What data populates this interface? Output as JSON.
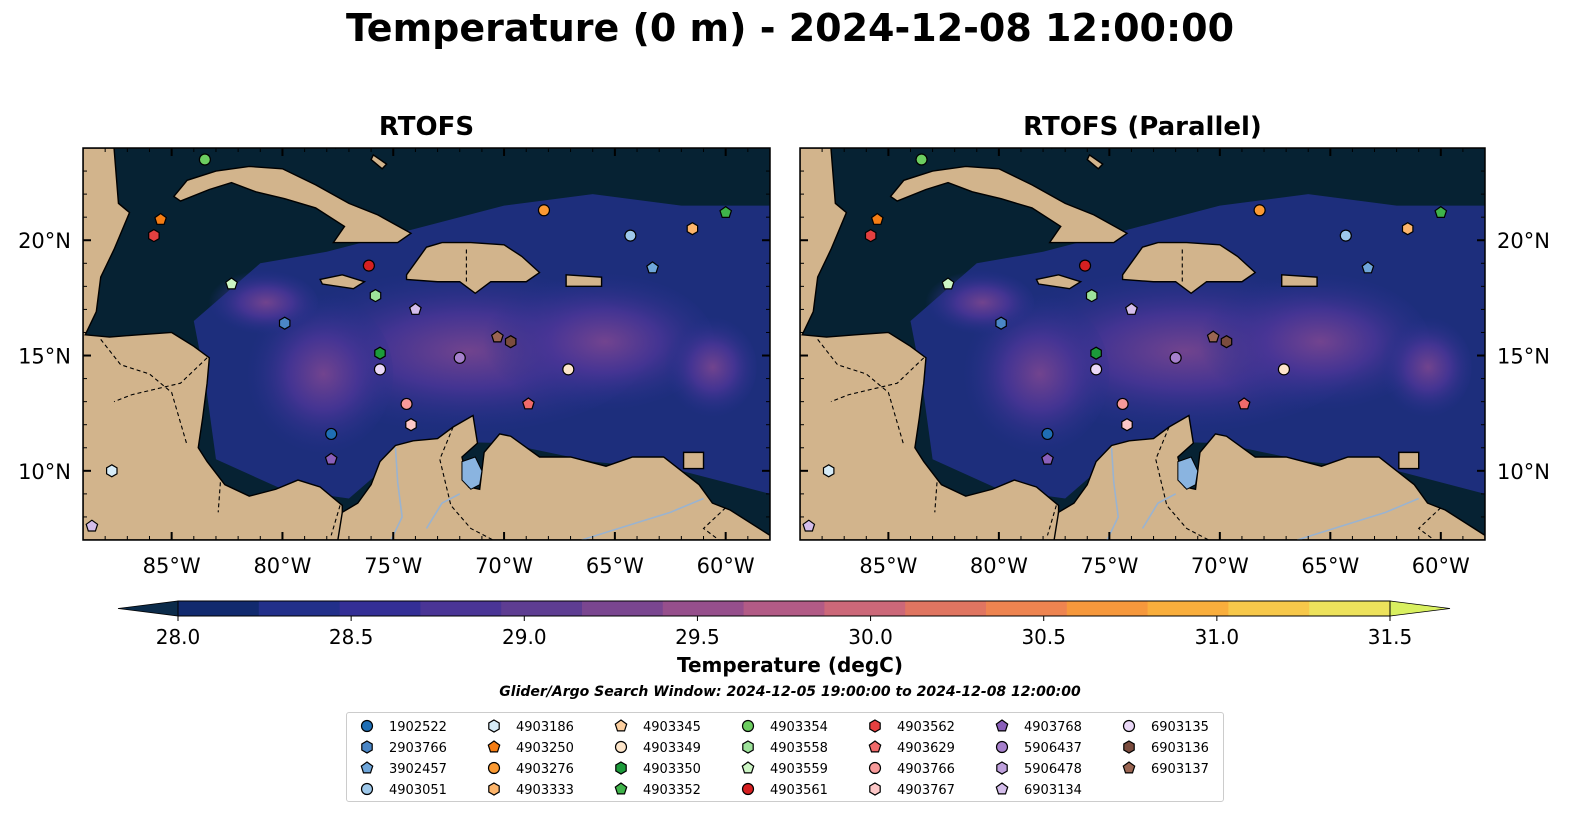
{
  "title": "Temperature (0 m) - 2024-12-08 12:00:00",
  "panels": [
    {
      "title": "RTOFS"
    },
    {
      "title": "RTOFS (Parallel)"
    }
  ],
  "map": {
    "extent": {
      "lon": [
        -89.0,
        -58.0
      ],
      "lat": [
        7.0,
        24.0
      ]
    },
    "lon_ticks": [
      -85,
      -80,
      -75,
      -70,
      -65,
      -60
    ],
    "lon_tick_labels": [
      "85°W",
      "80°W",
      "75°W",
      "70°W",
      "65°W",
      "60°W"
    ],
    "lat_ticks": [
      10,
      15,
      20
    ],
    "lat_tick_labels": [
      "10°N",
      "15°N",
      "20°N"
    ],
    "colors": {
      "ocean_deep": "#062233",
      "land": "#d2b48c",
      "lake": "#8ab4e0",
      "river": "#9ab3d0"
    }
  },
  "colorbar": {
    "label": "Temperature (degC)",
    "min": 28.0,
    "max": 31.5,
    "tick_values": [
      28.0,
      28.5,
      29.0,
      29.5,
      30.0,
      30.5,
      31.0,
      31.5
    ],
    "tick_labels": [
      "28.0",
      "28.5",
      "29.0",
      "29.5",
      "30.0",
      "30.5",
      "31.0",
      "31.5"
    ],
    "colors": [
      "#0b2b4a",
      "#112a6e",
      "#22308a",
      "#342f96",
      "#4a3596",
      "#5e3d92",
      "#7a4690",
      "#964f8c",
      "#b25b86",
      "#cc6879",
      "#e07561",
      "#ee8450",
      "#f6983c",
      "#f9ae3c",
      "#f7c84a",
      "#ede25c",
      "#d9f060"
    ]
  },
  "search_window": "Glider/Argo Search Window: 2024-12-05 19:00:00 to 2024-12-08 12:00:00",
  "legend": [
    {
      "id": "1902522",
      "marker": "circle",
      "color": "#1f6eb4"
    },
    {
      "id": "2903766",
      "marker": "hexagon",
      "color": "#4a86c6"
    },
    {
      "id": "3902457",
      "marker": "pentagon",
      "color": "#6fa6da"
    },
    {
      "id": "4903051",
      "marker": "circle",
      "color": "#9ec8ea"
    },
    {
      "id": "4903186",
      "marker": "hexagon",
      "color": "#d6ebf7"
    },
    {
      "id": "4903250",
      "marker": "pentagon",
      "color": "#f57d14"
    },
    {
      "id": "4903276",
      "marker": "circle",
      "color": "#fb9a33"
    },
    {
      "id": "4903333",
      "marker": "hexagon",
      "color": "#fdb56b"
    },
    {
      "id": "4903345",
      "marker": "pentagon",
      "color": "#fdd0a0"
    },
    {
      "id": "4903349",
      "marker": "circle",
      "color": "#fde5ca"
    },
    {
      "id": "4903350",
      "marker": "hexagon",
      "color": "#1c9a3a"
    },
    {
      "id": "4903352",
      "marker": "pentagon",
      "color": "#3fb34a"
    },
    {
      "id": "4903354",
      "marker": "circle",
      "color": "#6ccd60"
    },
    {
      "id": "4903558",
      "marker": "hexagon",
      "color": "#9de29a"
    },
    {
      "id": "4903559",
      "marker": "pentagon",
      "color": "#ccf5c4"
    },
    {
      "id": "4903561",
      "marker": "circle",
      "color": "#d62021"
    },
    {
      "id": "4903562",
      "marker": "hexagon",
      "color": "#e54040"
    },
    {
      "id": "4903629",
      "marker": "pentagon",
      "color": "#f06a6a"
    },
    {
      "id": "4903766",
      "marker": "circle",
      "color": "#f79a9a"
    },
    {
      "id": "4903767",
      "marker": "hexagon",
      "color": "#fdc8c8"
    },
    {
      "id": "4903768",
      "marker": "pentagon",
      "color": "#8a5fba"
    },
    {
      "id": "5906437",
      "marker": "circle",
      "color": "#a680cc"
    },
    {
      "id": "5906478",
      "marker": "hexagon",
      "color": "#bea0dc"
    },
    {
      "id": "6903134",
      "marker": "pentagon",
      "color": "#d4bdeb"
    },
    {
      "id": "6903135",
      "marker": "circle",
      "color": "#ead8f7"
    },
    {
      "id": "6903136",
      "marker": "hexagon",
      "color": "#7a4c3e"
    },
    {
      "id": "6903137",
      "marker": "pentagon",
      "color": "#9a6552"
    }
  ],
  "observations": [
    {
      "id": "4903354",
      "lon": -83.5,
      "lat": 23.5
    },
    {
      "id": "4903250",
      "lon": -85.5,
      "lat": 20.9
    },
    {
      "id": "4903562",
      "lon": -85.8,
      "lat": 20.2
    },
    {
      "id": "4903559",
      "lon": -82.3,
      "lat": 18.1
    },
    {
      "id": "2903766",
      "lon": -79.9,
      "lat": 16.4
    },
    {
      "id": "4903186",
      "lon": -87.7,
      "lat": 10.0
    },
    {
      "id": "6903134",
      "lon": -88.6,
      "lat": 7.6
    },
    {
      "id": "4903561",
      "lon": -76.1,
      "lat": 18.9
    },
    {
      "id": "4903558",
      "lon": -75.8,
      "lat": 17.6
    },
    {
      "id": "6903134",
      "lon": -74.0,
      "lat": 17.0
    },
    {
      "id": "4903350",
      "lon": -75.6,
      "lat": 15.1
    },
    {
      "id": "6903135",
      "lon": -75.6,
      "lat": 14.4
    },
    {
      "id": "5906437",
      "lon": -72.0,
      "lat": 14.9
    },
    {
      "id": "4903766",
      "lon": -74.4,
      "lat": 12.9
    },
    {
      "id": "4903767",
      "lon": -74.2,
      "lat": 12.0
    },
    {
      "id": "1902522",
      "lon": -77.8,
      "lat": 11.6
    },
    {
      "id": "4903768",
      "lon": -77.8,
      "lat": 10.5
    },
    {
      "id": "6903137",
      "lon": -70.3,
      "lat": 15.8
    },
    {
      "id": "6903136",
      "lon": -69.7,
      "lat": 15.6
    },
    {
      "id": "4903276",
      "lon": -68.2,
      "lat": 21.3
    },
    {
      "id": "4903051",
      "lon": -64.3,
      "lat": 20.2
    },
    {
      "id": "3902457",
      "lon": -63.3,
      "lat": 18.8
    },
    {
      "id": "4903333",
      "lon": -61.5,
      "lat": 20.5
    },
    {
      "id": "4903352",
      "lon": -60.0,
      "lat": 21.2
    },
    {
      "id": "4903349",
      "lon": -67.1,
      "lat": 14.4
    },
    {
      "id": "4903629",
      "lon": -68.9,
      "lat": 12.9
    }
  ]
}
